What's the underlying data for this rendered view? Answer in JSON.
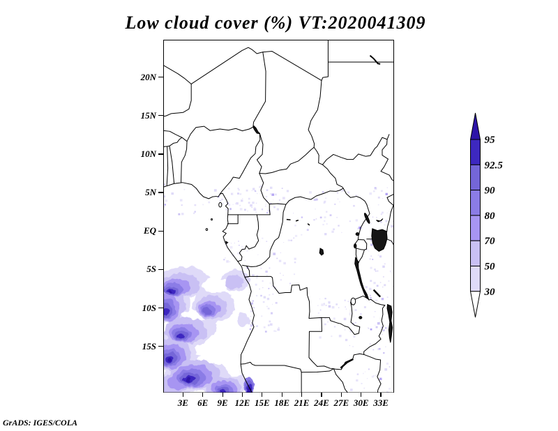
{
  "title": "Low cloud cover (%) VT:2020041309",
  "credit": "GrADS: IGES/COLA",
  "axes": {
    "x_ticks": [
      {
        "label": "3E",
        "lon": 3
      },
      {
        "label": "6E",
        "lon": 6
      },
      {
        "label": "9E",
        "lon": 9
      },
      {
        "label": "12E",
        "lon": 12
      },
      {
        "label": "15E",
        "lon": 15
      },
      {
        "label": "18E",
        "lon": 18
      },
      {
        "label": "21E",
        "lon": 21
      },
      {
        "label": "24E",
        "lon": 24
      },
      {
        "label": "27E",
        "lon": 27
      },
      {
        "label": "30E",
        "lon": 30
      },
      {
        "label": "33E",
        "lon": 33
      }
    ],
    "y_ticks": [
      {
        "label": "20N",
        "lat": 20
      },
      {
        "label": "15N",
        "lat": 15
      },
      {
        "label": "10N",
        "lat": 10
      },
      {
        "label": "5N",
        "lat": 5
      },
      {
        "label": "EQ",
        "lat": 0
      },
      {
        "label": "5S",
        "lat": -5
      },
      {
        "label": "10S",
        "lat": -10
      },
      {
        "label": "15S",
        "lat": -15
      }
    ]
  },
  "colorbar": {
    "labels": [
      "95",
      "92.5",
      "90",
      "80",
      "70",
      "50",
      "30"
    ],
    "segments": [
      {
        "range": "above 95",
        "color": "#2d14a8"
      },
      {
        "range": "92.5-95",
        "color": "#3d28c0"
      },
      {
        "range": "90-92.5",
        "color": "#7466d8"
      },
      {
        "range": "80-90",
        "color": "#8b7ce6"
      },
      {
        "range": "70-80",
        "color": "#a795f2"
      },
      {
        "range": "50-70",
        "color": "#c9c0f4"
      },
      {
        "range": "30-50",
        "color": "#dfdaf8"
      },
      {
        "range": "below 30",
        "color": "#ffffff"
      }
    ]
  },
  "chart_data": {
    "type": "heatmap",
    "title": "Low cloud cover (%) VT:2020041309",
    "variable": "low cloud cover",
    "unit": "%",
    "valid_time": "2020041309",
    "x_tick_labels": [
      "3E",
      "6E",
      "9E",
      "12E",
      "15E",
      "18E",
      "21E",
      "24E",
      "27E",
      "30E",
      "33E"
    ],
    "y_tick_labels": [
      "20N",
      "15N",
      "10N",
      "5N",
      "EQ",
      "5S",
      "10S",
      "15S"
    ],
    "lon_range": [
      0,
      35
    ],
    "lat_range": [
      -21,
      25
    ],
    "contour_levels": [
      30,
      50,
      70,
      80,
      90,
      92.5,
      95
    ],
    "palette": [
      "#ffffff",
      "#dfdaf8",
      "#c9c0f4",
      "#a795f2",
      "#8b7ce6",
      "#7466d8",
      "#3d28c0",
      "#2d14a8"
    ],
    "legend_position": "right",
    "grid": "off",
    "basemap": "Central Africa political boundaries with lakes (Chad, Nasser, Victoria, Kyoga, Albert, Tanganyika, Rukwa, Mweru, Malawi, Kariba)",
    "shaded_features": [
      {
        "area": "SE Atlantic off Angola coast, 0E-13E / 5S-21S",
        "cover": "extensive mottled stratocumulus deck, 30 to >95%"
      },
      {
        "area": "coastal strip near 13E, 19S-21S",
        "cover": "dense dark cores above 90%"
      },
      {
        "area": "Cameroon/CAR band 8E-19E, 2N-6N",
        "cover": "scattered light specks 30-50%"
      },
      {
        "area": "Angola interior, Zambia and E. Tanzania",
        "cover": "sparse light specks 30-50%"
      },
      {
        "area": "remainder of domain",
        "cover": "mostly clear, below 30%"
      }
    ]
  }
}
